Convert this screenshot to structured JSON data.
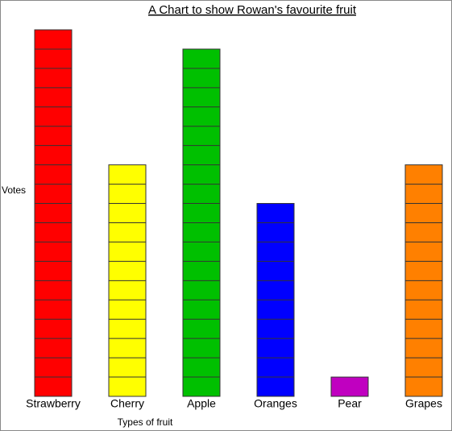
{
  "chart_data": {
    "type": "bar",
    "title": "A Chart to show Rowan's favourite fruit",
    "x_label": "Types of fruit",
    "y_label": "Votes",
    "categories": [
      "Strawberry",
      "Cherry",
      "Apple",
      "Oranges",
      "Pear",
      "Grapes"
    ],
    "values": [
      19,
      12,
      18,
      10,
      1,
      12
    ],
    "colors": [
      "#ff0000",
      "#ffff00",
      "#00c000",
      "#0000ff",
      "#c000c0",
      "#ff8000"
    ]
  }
}
